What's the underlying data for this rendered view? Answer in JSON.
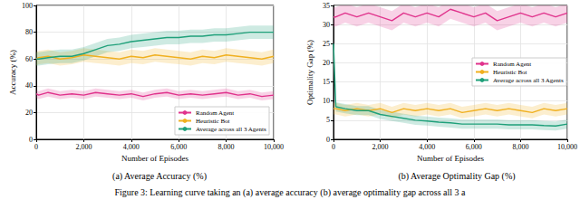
{
  "caption": "Figure 3: Learning curve taking an (a) average accuracy (b) average optimality gap across all 3 a",
  "chart_data": [
    {
      "type": "line",
      "title": "(a) Average Accuracy (%)",
      "xlabel": "Number of Episodes",
      "ylabel": "Accuracy (%)",
      "x": [
        0,
        100,
        500,
        1000,
        1500,
        2000,
        2500,
        3000,
        3500,
        4000,
        4500,
        5000,
        5500,
        6000,
        6500,
        7000,
        7500,
        8000,
        8500,
        9000,
        9500,
        10000
      ],
      "xlim": [
        0,
        10000
      ],
      "xticks": [
        0,
        2000,
        4000,
        6000,
        8000,
        10000
      ],
      "ylim": [
        0,
        100
      ],
      "yticks": [
        0,
        20,
        40,
        60,
        80,
        100
      ],
      "grid": true,
      "legend": "lower right",
      "series": [
        {
          "name": "Random Agent",
          "color": "#e0338c",
          "values": [
            34,
            33,
            35,
            33,
            34,
            33,
            35,
            34,
            33,
            34,
            32,
            34,
            35,
            33,
            34,
            33,
            34,
            35,
            33,
            34,
            32,
            33
          ],
          "lower": [
            31,
            30,
            32,
            30,
            31,
            30,
            32,
            31,
            30,
            31,
            29,
            31,
            32,
            30,
            31,
            30,
            31,
            32,
            30,
            31,
            29,
            30
          ],
          "upper": [
            37,
            36,
            38,
            36,
            37,
            36,
            38,
            37,
            36,
            37,
            35,
            37,
            38,
            36,
            37,
            36,
            37,
            38,
            36,
            37,
            35,
            36
          ]
        },
        {
          "name": "Heuristic Bot",
          "color": "#f0b020",
          "values": [
            60,
            61,
            62,
            60,
            61,
            63,
            62,
            61,
            60,
            62,
            61,
            63,
            62,
            61,
            60,
            62,
            61,
            63,
            62,
            61,
            60,
            62
          ],
          "lower": [
            55,
            56,
            57,
            55,
            56,
            58,
            57,
            56,
            55,
            57,
            56,
            58,
            57,
            56,
            55,
            57,
            56,
            58,
            57,
            56,
            55,
            57
          ],
          "upper": [
            65,
            66,
            67,
            65,
            66,
            68,
            67,
            66,
            65,
            67,
            66,
            68,
            67,
            66,
            65,
            67,
            66,
            68,
            67,
            66,
            65,
            67
          ]
        },
        {
          "name": "Average across all 3 Agents",
          "color": "#1fa07a",
          "values": [
            60,
            60,
            61,
            62,
            62,
            64,
            67,
            70,
            71,
            73,
            74,
            75,
            76,
            76,
            77,
            77,
            78,
            78,
            79,
            80,
            80,
            80
          ],
          "lower": [
            55,
            55,
            56,
            57,
            57,
            59,
            62,
            65,
            66,
            68,
            69,
            70,
            71,
            71,
            72,
            72,
            73,
            73,
            74,
            75,
            75,
            75
          ],
          "upper": [
            65,
            65,
            66,
            67,
            67,
            69,
            72,
            75,
            76,
            78,
            79,
            80,
            81,
            81,
            82,
            82,
            83,
            83,
            84,
            85,
            85,
            85
          ]
        }
      ]
    },
    {
      "type": "line",
      "title": "(b) Average Optimality Gap (%)",
      "xlabel": "Number of Episodes",
      "ylabel": "Optimality Gap (%)",
      "x": [
        0,
        100,
        500,
        1000,
        1500,
        2000,
        2500,
        3000,
        3500,
        4000,
        4500,
        5000,
        5500,
        6000,
        6500,
        7000,
        7500,
        8000,
        8500,
        9000,
        9500,
        10000
      ],
      "xlim": [
        0,
        10000
      ],
      "xticks": [
        0,
        2000,
        4000,
        6000,
        8000,
        10000
      ],
      "ylim": [
        0,
        35
      ],
      "yticks": [
        0,
        5,
        10,
        15,
        20,
        25,
        30,
        35
      ],
      "grid": true,
      "legend": "center right",
      "series": [
        {
          "name": "Random Agent",
          "color": "#e0338c",
          "values": [
            32,
            32,
            33,
            32,
            33,
            32,
            31,
            33,
            32,
            33,
            32,
            34,
            33,
            32,
            33,
            31,
            32,
            33,
            32,
            33,
            32,
            33
          ],
          "lower": [
            29.5,
            29.5,
            30.5,
            29.5,
            30.5,
            29.5,
            28.5,
            30.5,
            29.5,
            30.5,
            29.5,
            31.5,
            30.5,
            29.5,
            30.5,
            28.5,
            29.5,
            30.5,
            29.5,
            30.5,
            29.5,
            30.5
          ],
          "upper": [
            34.5,
            34.5,
            35.5,
            34.5,
            35.5,
            34.5,
            33.5,
            35.5,
            34.5,
            35.5,
            34.5,
            36.5,
            35.5,
            34.5,
            35.5,
            33.5,
            34.5,
            35.5,
            34.5,
            35.5,
            34.5,
            35.5
          ]
        },
        {
          "name": "Heuristic Bot",
          "color": "#f0b020",
          "values": [
            8,
            8,
            7.5,
            8,
            7.5,
            8,
            7,
            8,
            7.5,
            8,
            7.5,
            8,
            7,
            7.5,
            8,
            7.5,
            8,
            7.5,
            7,
            8,
            7.5,
            8
          ],
          "lower": [
            6.5,
            6.5,
            6,
            6.5,
            6,
            6.5,
            5.5,
            6.5,
            6,
            6.5,
            6,
            6.5,
            5.5,
            6,
            6.5,
            6,
            6.5,
            6,
            5.5,
            6.5,
            6,
            6.5
          ],
          "upper": [
            9.5,
            9.5,
            9,
            9.5,
            9,
            9.5,
            8.5,
            9.5,
            9,
            9.5,
            9,
            9.5,
            8.5,
            9,
            9.5,
            9,
            9.5,
            9,
            8.5,
            9.5,
            9,
            9.5
          ]
        },
        {
          "name": "Average across all 3 Agents",
          "color": "#1fa07a",
          "values": [
            25,
            8.5,
            8,
            7.5,
            7.5,
            6.5,
            6,
            5.5,
            5,
            4.8,
            4.5,
            4.3,
            4,
            4,
            4,
            4,
            3.8,
            3.8,
            3.8,
            3.6,
            3.5,
            4
          ],
          "lower": [
            23.8,
            7.3,
            6.8,
            6.3,
            6.3,
            5.3,
            4.8,
            4.3,
            3.8,
            3.6,
            3.3,
            3.1,
            2.8,
            2.8,
            2.8,
            2.8,
            2.6,
            2.6,
            2.6,
            2.4,
            2.3,
            2.8
          ],
          "upper": [
            26.2,
            9.7,
            9.2,
            8.7,
            8.7,
            7.7,
            7.2,
            6.7,
            6.2,
            6,
            5.7,
            5.5,
            5.2,
            5.2,
            5.2,
            5.2,
            5,
            5,
            5,
            4.8,
            4.7,
            5.2
          ]
        }
      ]
    }
  ]
}
